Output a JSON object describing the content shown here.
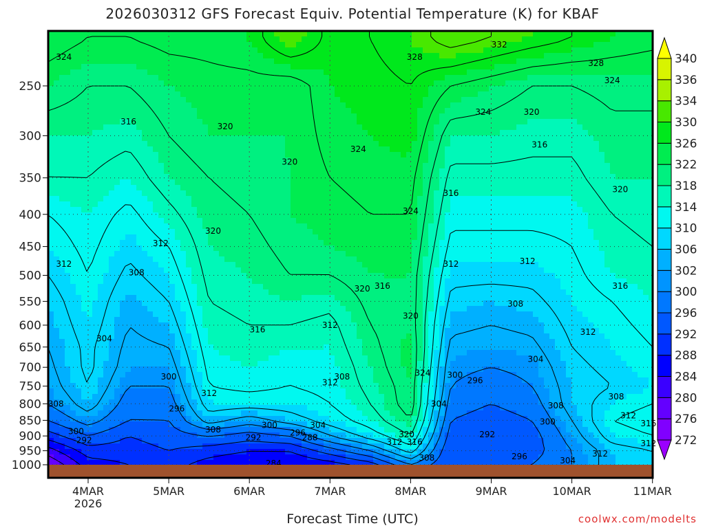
{
  "title": "2026030312 GFS Forecast Equiv. Potential Temperature (K) for KBAF",
  "credit": "coolwx.com/modelts",
  "chart_data": {
    "type": "heatmap",
    "title": "2026030312 GFS Forecast Equiv. Potential Temperature (K) for KBAF",
    "xlabel": "Forecast Time (UTC)",
    "ylabel": "Pressure (hPa)",
    "x_range_days": [
      3.5,
      11.0
    ],
    "y_range_hpa": [
      1048,
      204.5
    ],
    "y_scale": "log",
    "y_ticks": [
      250,
      300,
      350,
      400,
      450,
      500,
      550,
      600,
      650,
      700,
      750,
      800,
      850,
      900,
      950,
      1000
    ],
    "x_ticks": [
      {
        "day": 4,
        "label": "4MAR",
        "sub": "2026"
      },
      {
        "day": 5,
        "label": "5MAR"
      },
      {
        "day": 6,
        "label": "6MAR"
      },
      {
        "day": 7,
        "label": "7MAR"
      },
      {
        "day": 8,
        "label": "8MAR"
      },
      {
        "day": 9,
        "label": "9MAR"
      },
      {
        "day": 10,
        "label": "10MAR"
      },
      {
        "day": 11,
        "label": "11MAR"
      }
    ],
    "grid": true,
    "colorbar": {
      "position": "right",
      "levels": [
        272,
        276,
        280,
        284,
        288,
        292,
        296,
        300,
        302,
        306,
        310,
        314,
        318,
        322,
        326,
        330,
        334,
        336,
        340
      ],
      "colors": [
        "#9a00ff",
        "#8000ff",
        "#6400ff",
        "#3a00ff",
        "#0000ff",
        "#0030ff",
        "#0058ff",
        "#0078ff",
        "#0094ff",
        "#00b0ff",
        "#00d8ff",
        "#00f8f0",
        "#00f8b8",
        "#00f080",
        "#00ec50",
        "#00e81c",
        "#48e800",
        "#a8f000",
        "#d8f400",
        "#ffff00"
      ]
    },
    "contour_interval": 4,
    "ground_color": "#a0522d",
    "grid_days": [
      3.5,
      4.0,
      4.5,
      5.0,
      5.5,
      6.0,
      6.5,
      7.0,
      7.5,
      8.0,
      8.5,
      9.0,
      9.5,
      10.0,
      10.5,
      11.0
    ],
    "grid_levels": [
      1000,
      950,
      900,
      850,
      800,
      750,
      700,
      650,
      600,
      550,
      500,
      450,
      400,
      350,
      300,
      250,
      210
    ],
    "values": [
      [
        276,
        282,
        290,
        296,
        300,
        302,
        303,
        304,
        305,
        306,
        308,
        310,
        312,
        316,
        318,
        322,
        326
      ],
      [
        286,
        290,
        296,
        302,
        306,
        308,
        309,
        309,
        310,
        311,
        312,
        313,
        314,
        316,
        318,
        320,
        324
      ],
      [
        288,
        290,
        292,
        296,
        298,
        300,
        302,
        303,
        304,
        305,
        307,
        309,
        311,
        314,
        317,
        320,
        324
      ],
      [
        290,
        292,
        294,
        296,
        298,
        300,
        302,
        304,
        306,
        308,
        310,
        312,
        315,
        318,
        320,
        322,
        325
      ],
      [
        286,
        290,
        296,
        306,
        310,
        312,
        313,
        314,
        315,
        316,
        317,
        318,
        319,
        320,
        322,
        323,
        325
      ],
      [
        284,
        288,
        294,
        302,
        310,
        313,
        314,
        315,
        316,
        317,
        318,
        319,
        320,
        321,
        322,
        323,
        326
      ],
      [
        284,
        288,
        296,
        306,
        310,
        312,
        313,
        314,
        316,
        318,
        320,
        321,
        322,
        322,
        322,
        322,
        332
      ],
      [
        286,
        294,
        304,
        310,
        312,
        313,
        313,
        314,
        315,
        317,
        320,
        322,
        323,
        324,
        325,
        326,
        327
      ],
      [
        290,
        300,
        310,
        314,
        316,
        317,
        318,
        319,
        320,
        321,
        322,
        323,
        324,
        325,
        326,
        327,
        328
      ],
      [
        300,
        310,
        316,
        320,
        322,
        322,
        323,
        323,
        322,
        322,
        322,
        323,
        324,
        325,
        327,
        328,
        330
      ],
      [
        292,
        292,
        294,
        296,
        298,
        300,
        301,
        303,
        305,
        307,
        309,
        311,
        313,
        315,
        318,
        324,
        334
      ],
      [
        294,
        292,
        292,
        294,
        296,
        298,
        300,
        302,
        304,
        306,
        309,
        311,
        313,
        315,
        318,
        322,
        332
      ],
      [
        296,
        294,
        294,
        296,
        298,
        300,
        301,
        303,
        305,
        307,
        309,
        311,
        313,
        315,
        317,
        320,
        330
      ],
      [
        300,
        300,
        302,
        304,
        306,
        306,
        307,
        308,
        309,
        310,
        311,
        312,
        313,
        315,
        317,
        320,
        328
      ],
      [
        306,
        306,
        310,
        312,
        310,
        308,
        309,
        310,
        311,
        312,
        314,
        315,
        316,
        318,
        319,
        321,
        326
      ],
      [
        306,
        308,
        312,
        314,
        312,
        310,
        311,
        312,
        313,
        314,
        315,
        316,
        317,
        318,
        319,
        321,
        325
      ]
    ],
    "contour_labels": [
      [
        3.7,
        225,
        "324"
      ],
      [
        4.5,
        285,
        "316"
      ],
      [
        5.7,
        290,
        "320"
      ],
      [
        7.35,
        315,
        "324"
      ],
      [
        6.5,
        330,
        "320"
      ],
      [
        8.05,
        225,
        "328"
      ],
      [
        9.1,
        215,
        "332"
      ],
      [
        10.3,
        230,
        "328"
      ],
      [
        10.5,
        245,
        "324"
      ],
      [
        8.9,
        275,
        "324"
      ],
      [
        9.5,
        275,
        "320"
      ],
      [
        9.6,
        310,
        "316"
      ],
      [
        8.5,
        370,
        "316"
      ],
      [
        10.6,
        365,
        "320"
      ],
      [
        8.0,
        395,
        "324"
      ],
      [
        5.55,
        425,
        "320"
      ],
      [
        4.9,
        445,
        "312"
      ],
      [
        3.7,
        480,
        "312"
      ],
      [
        4.6,
        495,
        "308"
      ],
      [
        8.5,
        480,
        "312"
      ],
      [
        9.45,
        475,
        "312"
      ],
      [
        10.6,
        520,
        "316"
      ],
      [
        7.4,
        525,
        "320"
      ],
      [
        7.65,
        520,
        "316"
      ],
      [
        9.3,
        555,
        "308"
      ],
      [
        8.0,
        580,
        "320"
      ],
      [
        7.0,
        600,
        "312"
      ],
      [
        6.1,
        610,
        "316"
      ],
      [
        4.2,
        630,
        "304"
      ],
      [
        10.2,
        615,
        "312"
      ],
      [
        9.55,
        680,
        "304"
      ],
      [
        8.15,
        715,
        "324"
      ],
      [
        8.55,
        720,
        "300"
      ],
      [
        8.8,
        735,
        "296"
      ],
      [
        7.0,
        740,
        "312"
      ],
      [
        7.15,
        725,
        "308"
      ],
      [
        5.0,
        725,
        "300"
      ],
      [
        5.5,
        770,
        "312"
      ],
      [
        3.6,
        800,
        "308"
      ],
      [
        5.1,
        815,
        "296"
      ],
      [
        10.55,
        780,
        "308"
      ],
      [
        9.8,
        805,
        "308"
      ],
      [
        8.35,
        800,
        "304"
      ],
      [
        10.7,
        835,
        "312"
      ],
      [
        9.7,
        855,
        "300"
      ],
      [
        10.95,
        860,
        "316"
      ],
      [
        3.85,
        885,
        "300"
      ],
      [
        3.95,
        915,
        "292"
      ],
      [
        5.55,
        880,
        "308"
      ],
      [
        6.25,
        865,
        "300"
      ],
      [
        6.85,
        865,
        "304"
      ],
      [
        6.6,
        890,
        "296"
      ],
      [
        6.05,
        905,
        "292"
      ],
      [
        6.75,
        905,
        "288"
      ],
      [
        7.95,
        895,
        "320"
      ],
      [
        7.8,
        920,
        "312"
      ],
      [
        8.05,
        920,
        "316"
      ],
      [
        8.95,
        895,
        "292"
      ],
      [
        10.95,
        925,
        "312"
      ],
      [
        9.35,
        970,
        "296"
      ],
      [
        10.35,
        960,
        "312"
      ],
      [
        9.95,
        985,
        "304"
      ],
      [
        8.2,
        975,
        "308"
      ],
      [
        6.3,
        995,
        "284"
      ]
    ]
  }
}
